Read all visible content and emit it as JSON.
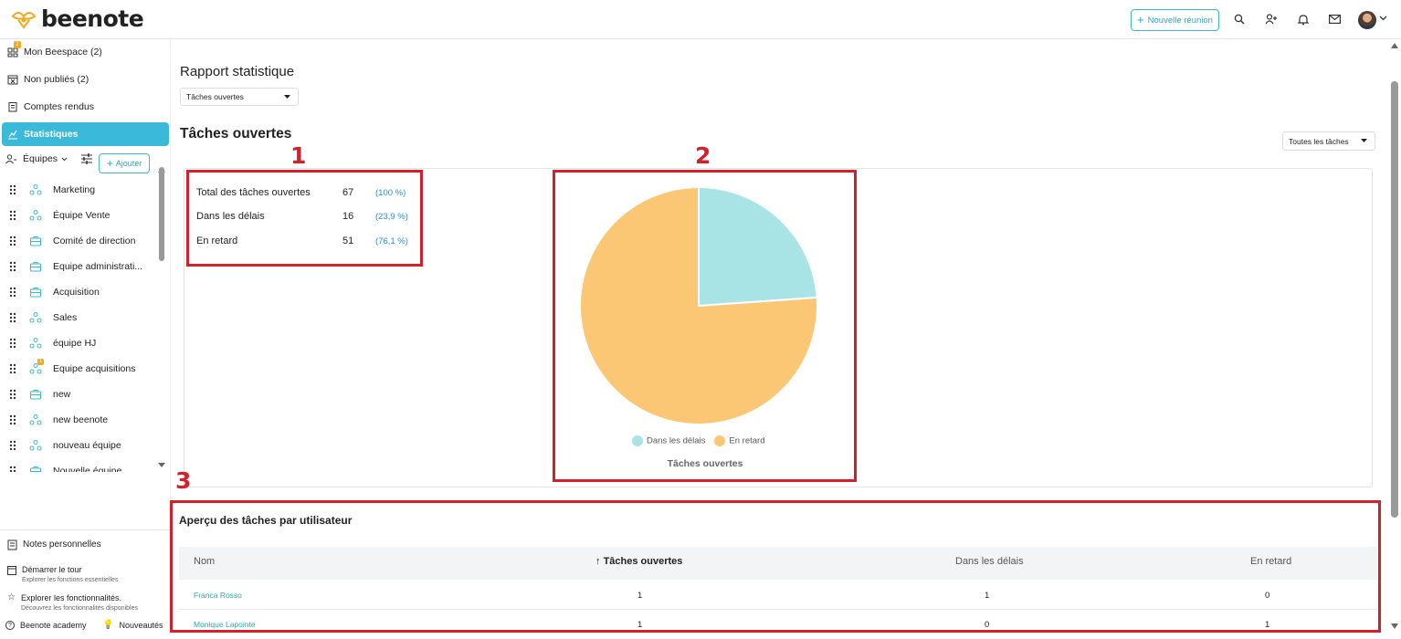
{
  "header": {
    "logo_text": "beenote",
    "new_meeting_label": "Nouvelle réunion",
    "icons": [
      "search-icon",
      "add-user-icon",
      "bell-icon",
      "mail-icon"
    ]
  },
  "sidebar": {
    "nav": [
      {
        "label": "Mon Beespace (2)",
        "badge": "2",
        "icon": "grid-icon"
      },
      {
        "label": "Non publiés (2)",
        "icon": "calendar-x-icon"
      },
      {
        "label": "Comptes rendus",
        "icon": "report-icon"
      },
      {
        "label": "Statistiques",
        "icon": "chart-icon",
        "active": true
      }
    ],
    "teams_label": "Équipes",
    "add_label": "Ajouter",
    "teams": [
      {
        "name": "Marketing",
        "icon": "team-icon"
      },
      {
        "name": "Équipe Vente",
        "icon": "team-icon"
      },
      {
        "name": "Comité de direction",
        "icon": "briefcase-icon"
      },
      {
        "name": "Equipe administrati...",
        "icon": "briefcase-icon"
      },
      {
        "name": "Acquisition",
        "icon": "briefcase-icon"
      },
      {
        "name": "Sales",
        "icon": "team-icon"
      },
      {
        "name": "équipe HJ",
        "icon": "team-icon"
      },
      {
        "name": "Equipe acquisitions",
        "icon": "team-icon",
        "badge": "1"
      },
      {
        "name": "new",
        "icon": "briefcase-icon"
      },
      {
        "name": "new beenote",
        "icon": "team-icon"
      },
      {
        "name": "nouveau équipe",
        "icon": "team-icon"
      },
      {
        "name": "Nouvelle équipe",
        "icon": "briefcase-icon"
      }
    ],
    "bottom": {
      "notes_label": "Notes personnelles",
      "tour_label": "Démarrer le tour",
      "tour_sub": "Explorer les fonctions essentielles",
      "features_label": "Explorer les fonctionnalités.",
      "features_sub": "Découvrez les fonctionnalités disponibles",
      "academy_label": "Beenote academy",
      "news_label": "Nouveautés"
    }
  },
  "main": {
    "page_title": "Rapport statistique",
    "report_select": "Tâches ouvertes",
    "section_title": "Tâches ouvertes",
    "filter_select": "Toutes les tâches",
    "annotations": [
      "1",
      "2",
      "3"
    ],
    "stats": [
      {
        "label": "Total des tâches ouvertes",
        "value": "67",
        "pct": "(100 %)"
      },
      {
        "label": "Dans les délais",
        "value": "16",
        "pct": "(23,9 %)"
      },
      {
        "label": "En retard",
        "value": "51",
        "pct": "(76,1 %)"
      }
    ],
    "users_title": "Aperçu des tâches par utilisateur",
    "table": {
      "headers": [
        "Nom",
        "Tâches ouvertes",
        "Dans les délais",
        "En retard"
      ],
      "rows": [
        {
          "name": "Franca Rosso",
          "open": "1",
          "on_time": "1",
          "late": "0"
        },
        {
          "name": "Monique Lapointe",
          "open": "1",
          "on_time": "0",
          "late": "1"
        }
      ]
    }
  },
  "chart_data": {
    "type": "pie",
    "title": "Tâches ouvertes",
    "legend_position": "bottom",
    "categories": [
      "Dans les délais",
      "En retard"
    ],
    "values": [
      16,
      51
    ],
    "colors": [
      "#a8e4e6",
      "#fbc775"
    ]
  }
}
